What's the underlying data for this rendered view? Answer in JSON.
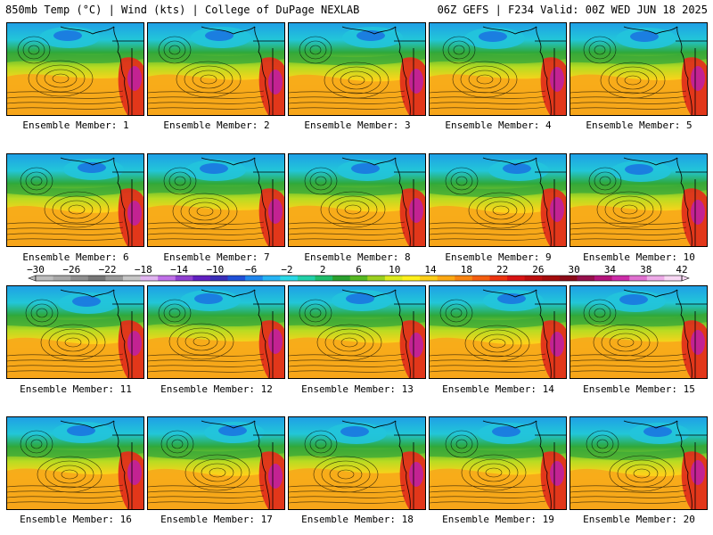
{
  "header": {
    "left_title": "850mb Temp (°C) | Wind (kts) | College of DuPage NEXLAB",
    "right_title": "06Z GEFS | F234 Valid: 00Z WED JUN 18 2025"
  },
  "panels": [
    {
      "label": "Ensemble Member: 1"
    },
    {
      "label": "Ensemble Member: 2"
    },
    {
      "label": "Ensemble Member: 3"
    },
    {
      "label": "Ensemble Member: 4"
    },
    {
      "label": "Ensemble Member: 5"
    },
    {
      "label": "Ensemble Member: 6"
    },
    {
      "label": "Ensemble Member: 7"
    },
    {
      "label": "Ensemble Member: 8"
    },
    {
      "label": "Ensemble Member: 9"
    },
    {
      "label": "Ensemble Member: 10"
    },
    {
      "label": "Ensemble Member: 11"
    },
    {
      "label": "Ensemble Member: 12"
    },
    {
      "label": "Ensemble Member: 13"
    },
    {
      "label": "Ensemble Member: 14"
    },
    {
      "label": "Ensemble Member: 15"
    },
    {
      "label": "Ensemble Member: 16"
    },
    {
      "label": "Ensemble Member: 17"
    },
    {
      "label": "Ensemble Member: 18"
    },
    {
      "label": "Ensemble Member: 19"
    },
    {
      "label": "Ensemble Member: 20"
    }
  ],
  "colorbar": {
    "ticks": [
      "−30",
      "−26",
      "−22",
      "−18",
      "−14",
      "−10",
      "−6",
      "−2",
      "2",
      "6",
      "10",
      "14",
      "18",
      "22",
      "26",
      "30",
      "34",
      "38",
      "42"
    ],
    "colors": [
      "#bdbdbd",
      "#a8a8a8",
      "#8f8f8f",
      "#777777",
      "#9a9a9a",
      "#c6c6c6",
      "#e0b4f0",
      "#c070e8",
      "#9040d0",
      "#6020c0",
      "#3a2eb8",
      "#2050d8",
      "#1f86ec",
      "#26b4f4",
      "#2ad8e6",
      "#22d0a8",
      "#1ebc6a",
      "#2aa02e",
      "#56b822",
      "#9cd020",
      "#ddeb1e",
      "#fef01c",
      "#fcce18",
      "#fca814",
      "#f88412",
      "#f45e10",
      "#ec3410",
      "#d81414",
      "#bc0e0e",
      "#a40c0c",
      "#8c0a18",
      "#96104c",
      "#b4147c",
      "#cc2ca8",
      "#e070d0",
      "#eeaae8",
      "#f8d8f4"
    ]
  }
}
